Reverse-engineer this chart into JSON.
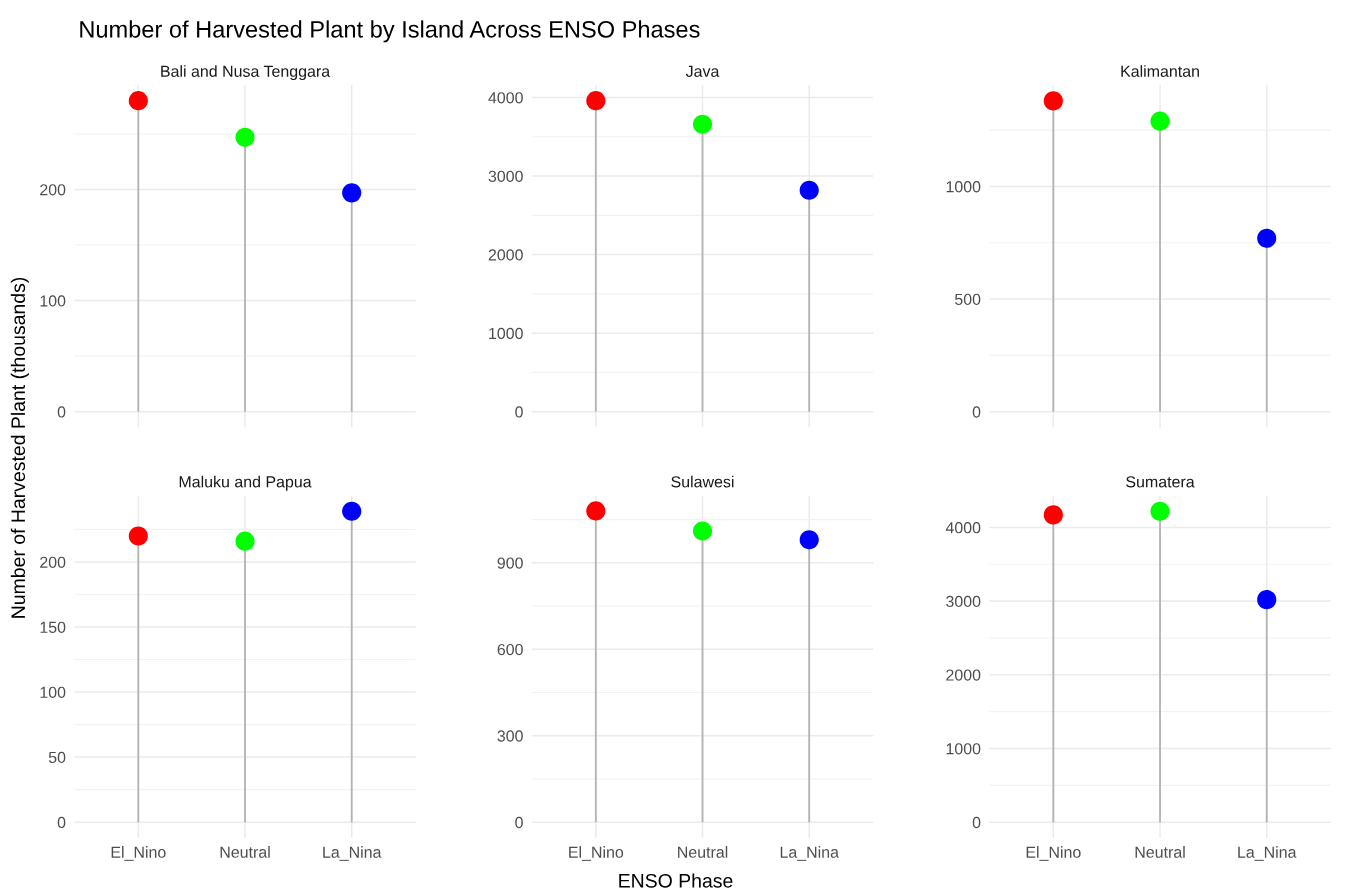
{
  "chart_data": [
    {
      "type": "lollipop",
      "title": "Bali and Nusa Tenggara",
      "annotations": [
        "Number of Harvested Plant by Island Across ENSO Phases"
      ],
      "categories": [
        null,
        null,
        null
      ],
      "values": [
        280,
        247,
        197
      ],
      "colors": [
        "#ff0000",
        "#00ff00",
        "#0000ff"
      ],
      "ylim": [
        -14,
        294
      ],
      "yticks": [
        0,
        100,
        200
      ],
      "grid": true,
      "tick_labels": "y",
      "marker": "circle"
    },
    {
      "type": "lollipop",
      "title": "Java",
      "categories": [
        null,
        null,
        null
      ],
      "values": [
        3960,
        3660,
        2820
      ],
      "colors": [
        "#ff0000",
        "#00ff00",
        "#0000ff"
      ],
      "ylim": [
        -198,
        4158
      ],
      "yticks": [
        0,
        1000,
        2000,
        3000,
        4000
      ],
      "grid": true,
      "tick_labels": "y",
      "marker": "circle"
    },
    {
      "type": "lollipop",
      "title": "Kalimantan",
      "categories": [
        null,
        null,
        null
      ],
      "values": [
        1380,
        1290,
        770
      ],
      "colors": [
        "#ff0000",
        "#00ff00",
        "#0000ff"
      ],
      "ylim": [
        -69,
        1450
      ],
      "yticks": [
        0,
        500,
        1000
      ],
      "grid": true,
      "tick_labels": "y",
      "marker": "circle"
    },
    {
      "type": "lollipop",
      "title": "Maluku and Papua",
      "ylabel": "Number of Harvested Plant (thousands)",
      "categories": [
        "El_Nino",
        "Neutral",
        "La_Nina"
      ],
      "values": [
        220,
        216,
        239
      ],
      "colors": [
        "#ff0000",
        "#00ff00",
        "#0000ff"
      ],
      "ylim": [
        -12,
        251
      ],
      "yticks": [
        0,
        50,
        100,
        150,
        200
      ],
      "grid": true,
      "marker": "circle"
    },
    {
      "type": "lollipop",
      "title": "Sulawesi",
      "xlabel": "ENSO Phase",
      "categories": [
        "El_Nino",
        "Neutral",
        "La_Nina"
      ],
      "values": [
        1080,
        1010,
        980
      ],
      "colors": [
        "#ff0000",
        "#00ff00",
        "#0000ff"
      ],
      "ylim": [
        -54,
        1133
      ],
      "yticks": [
        0,
        300,
        600,
        900
      ],
      "grid": true,
      "marker": "circle"
    },
    {
      "type": "lollipop",
      "title": "Sumatera",
      "categories": [
        "El_Nino",
        "Neutral",
        "La_Nina"
      ],
      "values": [
        4170,
        4220,
        3020
      ],
      "colors": [
        "#ff0000",
        "#00ff00",
        "#0000ff"
      ],
      "ylim": [
        -211,
        4431
      ],
      "yticks": [
        0,
        1000,
        2000,
        3000,
        4000
      ],
      "grid": true,
      "marker": "circle"
    }
  ]
}
